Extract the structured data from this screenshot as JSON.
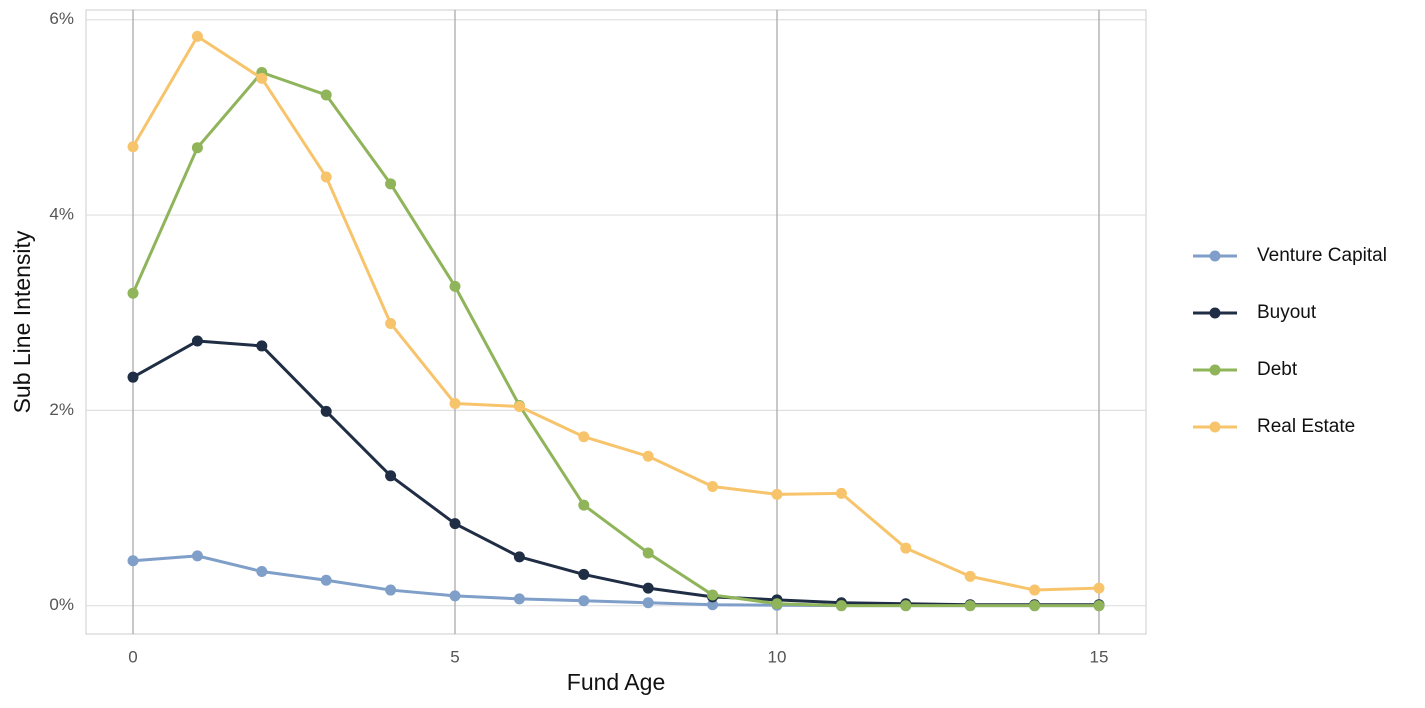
{
  "chart_data": {
    "type": "line",
    "x_label": "Fund Age",
    "y_label": "Sub Line Intensity",
    "x": [
      0,
      1,
      2,
      3,
      4,
      5,
      6,
      7,
      8,
      9,
      10,
      11,
      12,
      13,
      14,
      15
    ],
    "xlim": [
      -0.73,
      15.73
    ],
    "xticks": [
      0,
      5,
      10,
      15
    ],
    "ylim": [
      -0.29,
      6.1
    ],
    "yticks": [
      {
        "value": 0,
        "label": "0%"
      },
      {
        "value": 2,
        "label": "2%"
      },
      {
        "value": 4,
        "label": "4%"
      },
      {
        "value": 6,
        "label": "6%"
      }
    ],
    "grid": true,
    "legend": "right",
    "series": [
      {
        "name": "Venture Capital",
        "color": "#7f9fc9",
        "values": [
          0.46,
          0.51,
          0.35,
          0.26,
          0.16,
          0.1,
          0.07,
          0.05,
          0.03,
          0.01,
          0.005,
          0,
          0,
          0,
          0,
          0
        ]
      },
      {
        "name": "Buyout",
        "color": "#1f2e45",
        "values": [
          2.34,
          2.71,
          2.66,
          1.99,
          1.33,
          0.84,
          0.5,
          0.32,
          0.18,
          0.09,
          0.06,
          0.03,
          0.02,
          0.01,
          0.01,
          0.01
        ]
      },
      {
        "name": "Debt",
        "color": "#8fb45a",
        "values": [
          3.2,
          4.69,
          5.46,
          5.23,
          4.32,
          3.27,
          2.05,
          1.03,
          0.54,
          0.11,
          0.02,
          0,
          0,
          0,
          0,
          0
        ]
      },
      {
        "name": "Real Estate",
        "color": "#f7c46c",
        "values": [
          4.7,
          5.83,
          5.4,
          4.39,
          2.89,
          2.07,
          2.04,
          1.73,
          1.53,
          1.22,
          1.14,
          1.15,
          0.59,
          0.3,
          0.16,
          0.18
        ]
      }
    ]
  }
}
